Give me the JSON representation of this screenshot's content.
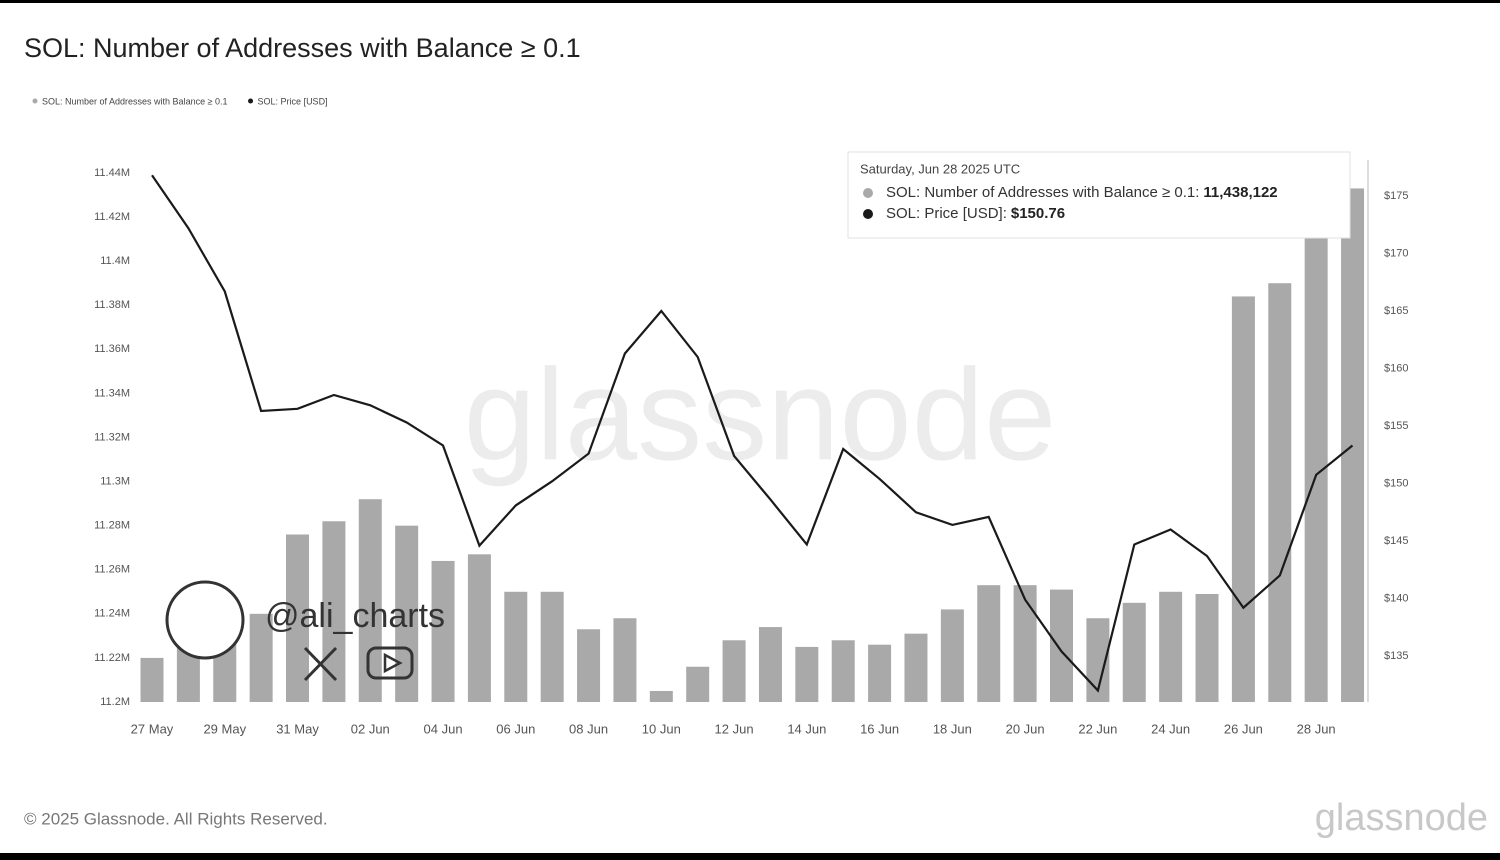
{
  "chart_data": {
    "type": "bar",
    "title": "SOL: Number of Addresses with Balance ≥ 0.1",
    "categories": [
      "27 May",
      null,
      "29 May",
      null,
      "31 May",
      null,
      "02 Jun",
      null,
      "04 Jun",
      null,
      "06 Jun",
      null,
      "08 Jun",
      null,
      "10 Jun",
      null,
      "12 Jun",
      null,
      "14 Jun",
      null,
      "16 Jun",
      null,
      "18 Jun",
      null,
      "20 Jun",
      null,
      "22 Jun",
      null,
      "24 Jun",
      null,
      "26 Jun",
      null,
      "28 Jun",
      null
    ],
    "series": [
      {
        "name": "SOL: Number of Addresses with Balance ≥ 0.1",
        "type": "bar",
        "color": "#a9a9a9",
        "values": [
          11220000,
          11230000,
          11235000,
          11240000,
          11276000,
          11282000,
          11292000,
          11280000,
          11264000,
          11267000,
          11250000,
          11250000,
          11233000,
          11238000,
          11205000,
          11216000,
          11228000,
          11234000,
          11225000,
          11228000,
          11226000,
          11231000,
          11242000,
          11253000,
          11253000,
          11251000,
          11238000,
          11245000,
          11250000,
          11249000,
          11384000,
          11390000,
          11438122,
          11433000
        ]
      },
      {
        "name": "SOL: Price [USD]",
        "type": "line",
        "axis": "y2",
        "color": "#1a1a1a",
        "values": [
          176.8,
          172.2,
          166.7,
          156.3,
          156.5,
          157.7,
          156.8,
          155.3,
          153.3,
          144.6,
          148.1,
          150.2,
          152.6,
          161.3,
          165.0,
          161.0,
          152.4,
          148.6,
          144.7,
          153.0,
          150.4,
          147.5,
          146.4,
          147.1,
          139.9,
          135.4,
          132.0,
          144.7,
          146.0,
          143.7,
          139.2,
          142.0,
          150.76,
          153.3
        ]
      }
    ],
    "ylim": [
      11200000,
      11440000
    ],
    "yticks": [
      {
        "value": 11200000,
        "label": "11.2M"
      },
      {
        "value": 11220000,
        "label": "11.22M"
      },
      {
        "value": 11240000,
        "label": "11.24M"
      },
      {
        "value": 11260000,
        "label": "11.26M"
      },
      {
        "value": 11280000,
        "label": "11.28M"
      },
      {
        "value": 11300000,
        "label": "11.3M"
      },
      {
        "value": 11320000,
        "label": "11.32M"
      },
      {
        "value": 11340000,
        "label": "11.34M"
      },
      {
        "value": 11360000,
        "label": "11.36M"
      },
      {
        "value": 11380000,
        "label": "11.38M"
      },
      {
        "value": 11400000,
        "label": "11.4M"
      },
      {
        "value": 11420000,
        "label": "11.42M"
      },
      {
        "value": 11440000,
        "label": "11.44M"
      }
    ],
    "y2lim": [
      131,
      177
    ],
    "y2ticks": [
      {
        "value": 135,
        "label": "$135"
      },
      {
        "value": 140,
        "label": "$140"
      },
      {
        "value": 145,
        "label": "$145"
      },
      {
        "value": 150,
        "label": "$150"
      },
      {
        "value": 155,
        "label": "$155"
      },
      {
        "value": 160,
        "label": "$160"
      },
      {
        "value": 165,
        "label": "$165"
      },
      {
        "value": 170,
        "label": "$170"
      },
      {
        "value": 175,
        "label": "$175"
      }
    ],
    "tooltip": {
      "date": "Saturday, Jun 28 2025 UTC",
      "rows": [
        {
          "label": "SOL: Number of Addresses with Balance ≥ 0.1:",
          "value": "11,438,122"
        },
        {
          "label": "SOL: Price [USD]:",
          "value": "$150.76"
        }
      ]
    },
    "watermark": "glassnode",
    "author": "@ali_charts",
    "footer": "© 2025 Glassnode. All Rights Reserved.",
    "logo": "glassnode"
  }
}
